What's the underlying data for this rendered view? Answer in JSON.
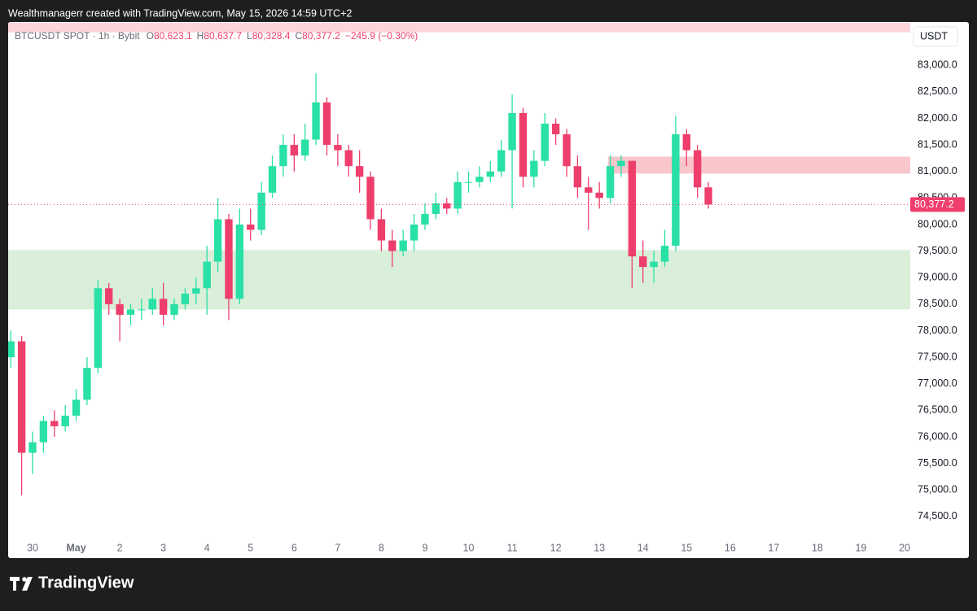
{
  "header": {
    "caption": "Wealthmanagerr created with TradingView.com, May 15, 2026 14:59 UTC+2"
  },
  "chart_data": {
    "type": "candlestick",
    "symbol": "BTCUSDT SPOT · 1h · Bybit",
    "ohlc": [
      {
        "name": "O",
        "value": "80,623.1"
      },
      {
        "name": "H",
        "value": "80,637.7"
      },
      {
        "name": "L",
        "value": "80,328.4"
      },
      {
        "name": "C",
        "value": "80,377.2"
      }
    ],
    "change": "−245.9 (−0.30%)",
    "currency": "USDT",
    "up_color": "#29e0a6",
    "down_color": "#ee3f6c",
    "x": [
      -0.5,
      -0.25,
      0,
      0.25,
      0.5,
      0.75,
      1,
      1.25,
      1.5,
      1.75,
      2,
      2.25,
      2.5,
      2.75,
      3,
      3.25,
      3.5,
      3.75,
      4,
      4.25,
      4.5,
      4.75,
      5,
      5.25,
      5.5,
      5.75,
      6,
      6.25,
      6.5,
      6.75,
      7,
      7.25,
      7.5,
      7.75,
      8,
      8.25,
      8.5,
      8.75,
      9,
      9.25,
      9.5,
      9.75,
      10,
      10.25,
      10.5,
      10.75,
      11,
      11.25,
      11.5,
      11.75,
      12,
      12.25,
      12.5,
      12.75,
      13,
      13.25,
      13.5,
      13.75,
      14,
      14.25,
      14.5,
      14.75,
      15,
      15.25,
      15.5
    ],
    "open": [
      77500,
      77800,
      75700,
      75900,
      76300,
      76200,
      76400,
      76700,
      77300,
      78800,
      78500,
      78300,
      78400,
      78400,
      78600,
      78300,
      78500,
      78700,
      78800,
      79300,
      80100,
      78600,
      80000,
      79900,
      80600,
      81100,
      81500,
      81300,
      81600,
      82300,
      81500,
      81400,
      81100,
      80900,
      80100,
      79700,
      79500,
      79700,
      80000,
      80200,
      80400,
      80300,
      80800,
      80800,
      80900,
      81000,
      81400,
      82100,
      80900,
      81200,
      81900,
      81700,
      81100,
      80700,
      80600,
      80500,
      81100,
      81200,
      79400,
      79200,
      79300,
      79600,
      81700,
      81400,
      80700
    ],
    "high": [
      78000,
      77900,
      76100,
      76400,
      76500,
      76600,
      76900,
      77500,
      78950,
      78900,
      78600,
      78500,
      78600,
      78800,
      78900,
      78600,
      78800,
      79000,
      79600,
      80500,
      80200,
      80300,
      80300,
      80800,
      81300,
      81700,
      81700,
      81900,
      82850,
      82400,
      81700,
      81500,
      81400,
      81000,
      80300,
      79900,
      79900,
      80200,
      80400,
      80600,
      80500,
      81000,
      81000,
      81100,
      81200,
      81600,
      82450,
      82200,
      81400,
      82100,
      82000,
      81800,
      81300,
      80900,
      80800,
      81300,
      81300,
      81200,
      79700,
      79500,
      79900,
      82050,
      81800,
      81500,
      80800
    ],
    "low": [
      77300,
      74900,
      75300,
      75700,
      76000,
      76100,
      76300,
      76600,
      77200,
      78300,
      77800,
      78100,
      78200,
      78300,
      78100,
      78200,
      78400,
      78500,
      78300,
      79100,
      78200,
      78500,
      79700,
      79800,
      80500,
      80900,
      81000,
      81200,
      81500,
      81300,
      81100,
      80900,
      80600,
      79900,
      79500,
      79200,
      79400,
      79500,
      79900,
      80100,
      80200,
      80200,
      80600,
      80700,
      80800,
      80900,
      80300,
      80700,
      80700,
      81100,
      81500,
      80900,
      80500,
      79900,
      80300,
      80400,
      80900,
      78800,
      78900,
      78900,
      79200,
      79500,
      81100,
      80500,
      80300
    ],
    "close": [
      77800,
      75700,
      75900,
      76300,
      76200,
      76400,
      76700,
      77300,
      78800,
      78500,
      78300,
      78400,
      78400,
      78600,
      78300,
      78500,
      78700,
      78800,
      79300,
      80100,
      78600,
      80000,
      79900,
      80600,
      81100,
      81500,
      81300,
      81600,
      82300,
      81500,
      81400,
      81100,
      80900,
      80100,
      79700,
      79500,
      79700,
      80000,
      80200,
      80400,
      80300,
      80800,
      80800,
      80900,
      81000,
      81400,
      82100,
      80900,
      81200,
      81900,
      81700,
      81100,
      80700,
      80600,
      80500,
      81100,
      81200,
      79400,
      79200,
      79300,
      79600,
      81700,
      81400,
      80700,
      80377.2
    ],
    "zones": [
      {
        "x0": -0.56,
        "low": 78400,
        "high": 79520,
        "color": "#d9efd9"
      },
      {
        "x0": 13.2,
        "low": 80960,
        "high": 81280,
        "color": "#f9c6cc"
      },
      {
        "x0": -0.56,
        "low": 83620,
        "high": 83800,
        "color": "#fbd5d9"
      }
    ],
    "last_price": {
      "value": 80377.2,
      "label": "80,377.2"
    },
    "last_price_color": "#ee3f6c",
    "xlim": [
      -0.56,
      20.13
    ],
    "xticks": [
      {
        "value": 0,
        "label": "30"
      },
      {
        "value": 1,
        "label": "May"
      },
      2,
      3,
      4,
      5,
      6,
      7,
      8,
      9,
      10,
      11,
      12,
      13,
      14,
      15,
      16,
      17,
      18,
      19,
      20
    ],
    "ylim": [
      74100,
      83800
    ],
    "yticks": [
      {
        "value": 83000,
        "label": "83,000.0"
      },
      {
        "value": 82500,
        "label": "82,500.0"
      },
      {
        "value": 82000,
        "label": "82,000.0"
      },
      {
        "value": 81500,
        "label": "81,500.0"
      },
      {
        "value": 81000,
        "label": "81,000.0"
      },
      {
        "value": 80500,
        "label": "80,500.0"
      },
      {
        "value": 80000,
        "label": "80,000.0"
      },
      {
        "value": 79500,
        "label": "79,500.0"
      },
      {
        "value": 79000,
        "label": "79,000.0"
      },
      {
        "value": 78500,
        "label": "78,500.0"
      },
      {
        "value": 78000,
        "label": "78,000.0"
      },
      {
        "value": 77500,
        "label": "77,500.0"
      },
      {
        "value": 77000,
        "label": "77,000.0"
      },
      {
        "value": 76500,
        "label": "76,500.0"
      },
      {
        "value": 76000,
        "label": "76,000.0"
      },
      {
        "value": 75500,
        "label": "75,500.0"
      },
      {
        "value": 75000,
        "label": "75,000.0"
      },
      {
        "value": 74500,
        "label": "74,500.0"
      }
    ],
    "grid": false
  },
  "footer": {
    "brand": "TradingView"
  }
}
